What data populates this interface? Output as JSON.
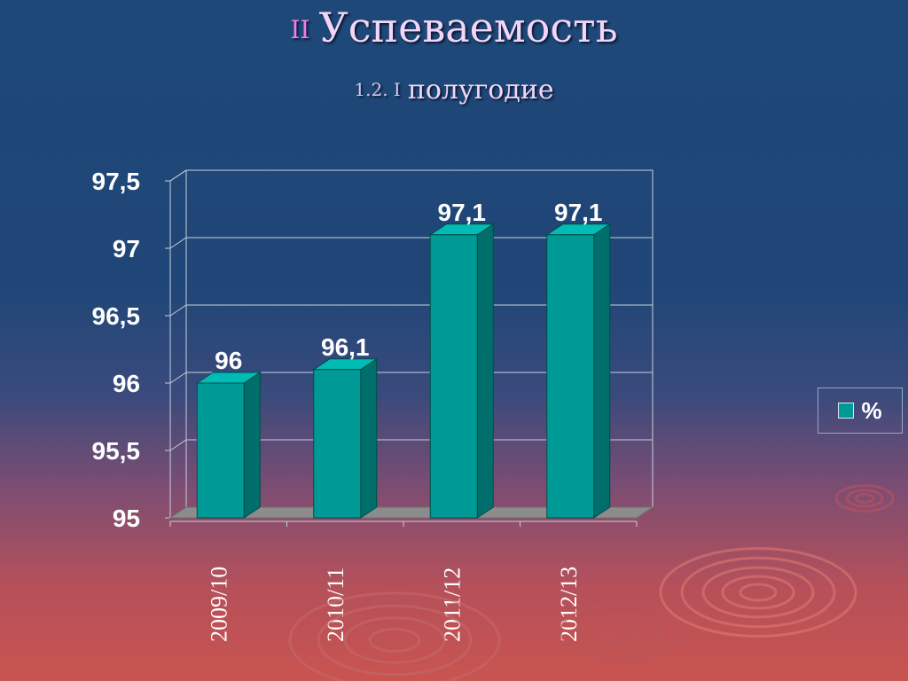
{
  "slide": {
    "title_number": "II",
    "title_text": "Успеваемость",
    "subtitle_number": "1.2. I",
    "subtitle_text": "полугодие"
  },
  "colors": {
    "bar_front": "#009a96",
    "bar_side": "#006f6b",
    "bar_top": "#00bcb5",
    "floor": "#8c8c8c",
    "axis_text": "#ffffff",
    "grid": "#c8cfda"
  },
  "chart_data": {
    "type": "bar",
    "categories": [
      "2009/10",
      "2010/11",
      "2011/12",
      "2012/13"
    ],
    "series": [
      {
        "name": "%",
        "values": [
          96,
          96.1,
          97.1,
          97.1
        ]
      }
    ],
    "data_labels": [
      "96",
      "96,1",
      "97,1",
      "97,1"
    ],
    "ylim": [
      95,
      97.5
    ],
    "y_ticks": [
      95,
      95.5,
      96,
      96.5,
      97,
      97.5
    ],
    "y_tick_labels": [
      "95",
      "95,5",
      "96",
      "96,5",
      "97",
      "97,5"
    ],
    "grid": true,
    "legend_position": "right",
    "three_d": true
  }
}
